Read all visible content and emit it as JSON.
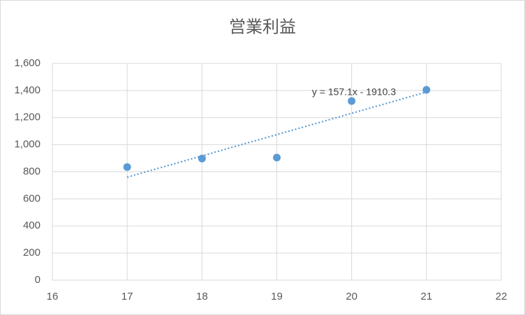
{
  "chart_data": {
    "type": "scatter",
    "title": "営業利益",
    "x": [
      17,
      18,
      19,
      20,
      21
    ],
    "values": [
      835,
      898,
      905,
      1322,
      1405
    ],
    "color": "#5b9bd5",
    "xlim": [
      16,
      22
    ],
    "xticks": [
      16,
      17,
      18,
      19,
      20,
      21,
      22
    ],
    "ylim": [
      0,
      1600
    ],
    "yticks": [
      0,
      200,
      400,
      600,
      800,
      {
        "value": 1000,
        "label": "1,000"
      },
      {
        "value": 1200,
        "label": "1,200"
      },
      {
        "value": 1400,
        "label": "1,400"
      },
      {
        "value": 1600,
        "label": "1,600"
      }
    ],
    "grid": true,
    "trendline": {
      "label": "y = 157.1x - 1910.3",
      "slope": 157.1,
      "intercept": -1910.3
    }
  }
}
